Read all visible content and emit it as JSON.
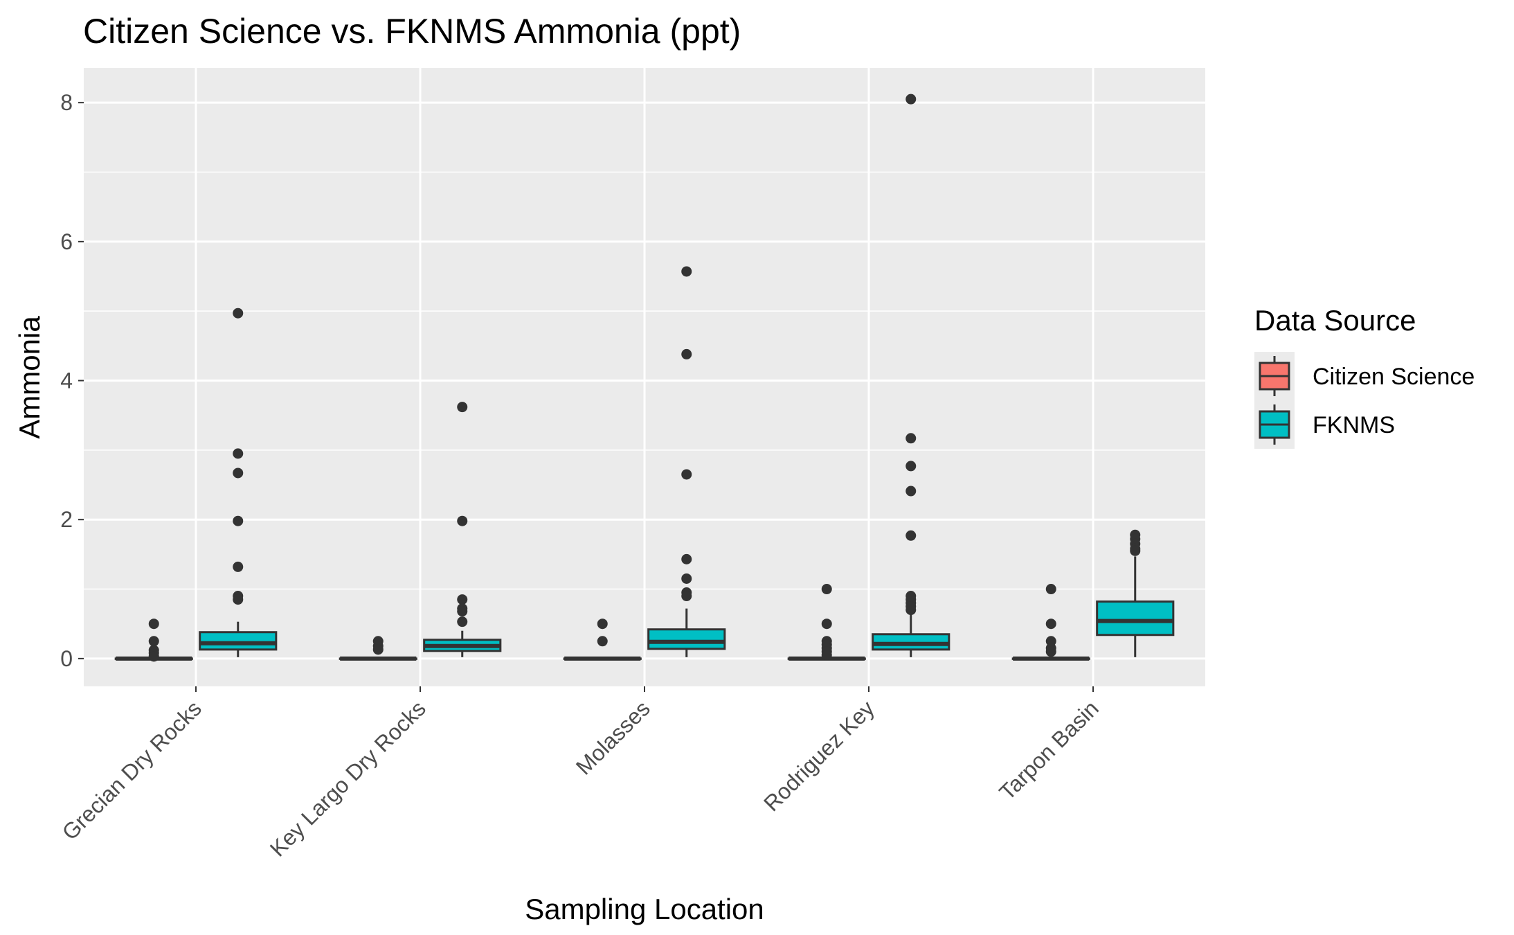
{
  "chart_data": {
    "type": "box",
    "title": "Citizen Science vs. FKNMS Ammonia (ppt)",
    "xlabel": "Sampling Location",
    "ylabel": "Ammonia",
    "categories": [
      "Grecian Dry Rocks",
      "Key Largo Dry Rocks",
      "Molasses",
      "Rodriguez Key",
      "Tarpon Basin"
    ],
    "ylim": [
      -0.4,
      8.5
    ],
    "yticks": [
      "0",
      "2",
      "4",
      "6",
      "8"
    ],
    "grid": true,
    "legend": {
      "title": "Data Source",
      "position": "right",
      "entries": [
        "Citizen Science",
        "FKNMS"
      ]
    },
    "colors": {
      "Citizen Science": "#f8766d",
      "FKNMS": "#00bfc4",
      "panel": "#ebebeb",
      "grid": "#ffffff",
      "outline": "#333333"
    },
    "series": [
      {
        "name": "Citizen Science",
        "boxes": [
          {
            "category": "Grecian Dry Rocks",
            "min": 0,
            "q1": 0,
            "median": 0,
            "q3": 0,
            "max": 0,
            "outliers": [
              0.5,
              0.25,
              0.12,
              0.08,
              0.03
            ]
          },
          {
            "category": "Key Largo Dry Rocks",
            "min": 0,
            "q1": 0,
            "median": 0,
            "q3": 0,
            "max": 0,
            "outliers": [
              0.25,
              0.18,
              0.13
            ]
          },
          {
            "category": "Molasses",
            "min": 0,
            "q1": 0,
            "median": 0,
            "q3": 0,
            "max": 0,
            "outliers": [
              0.5,
              0.25
            ]
          },
          {
            "category": "Rodriguez Key",
            "min": 0,
            "q1": 0,
            "median": 0,
            "q3": 0,
            "max": 0,
            "outliers": [
              1.0,
              0.5,
              0.25,
              0.2,
              0.15,
              0.1,
              0.05
            ]
          },
          {
            "category": "Tarpon Basin",
            "min": 0,
            "q1": 0,
            "median": 0,
            "q3": 0,
            "max": 0,
            "outliers": [
              1.0,
              0.5,
              0.25,
              0.15,
              0.1
            ]
          }
        ]
      },
      {
        "name": "FKNMS",
        "boxes": [
          {
            "category": "Grecian Dry Rocks",
            "min": 0.02,
            "q1": 0.13,
            "median": 0.22,
            "q3": 0.38,
            "max": 0.53,
            "outliers": [
              4.97,
              2.95,
              2.67,
              1.98,
              1.32,
              0.9,
              0.85
            ]
          },
          {
            "category": "Key Largo Dry Rocks",
            "min": 0.02,
            "q1": 0.11,
            "median": 0.18,
            "q3": 0.27,
            "max": 0.4,
            "outliers": [
              3.62,
              1.98,
              0.85,
              0.72,
              0.68,
              0.53
            ]
          },
          {
            "category": "Molasses",
            "min": 0.02,
            "q1": 0.14,
            "median": 0.24,
            "q3": 0.42,
            "max": 0.72,
            "outliers": [
              5.57,
              4.38,
              2.65,
              1.43,
              1.15,
              0.95,
              0.9
            ]
          },
          {
            "category": "Rodriguez Key",
            "min": 0.02,
            "q1": 0.13,
            "median": 0.21,
            "q3": 0.35,
            "max": 0.65,
            "outliers": [
              8.05,
              3.17,
              2.77,
              2.41,
              1.77,
              0.9,
              0.85,
              0.8,
              0.75,
              0.7
            ]
          },
          {
            "category": "Tarpon Basin",
            "min": 0.02,
            "q1": 0.34,
            "median": 0.54,
            "q3": 0.82,
            "max": 1.47,
            "outliers": [
              1.78,
              1.72,
              1.65,
              1.58,
              1.55
            ]
          }
        ]
      }
    ]
  }
}
